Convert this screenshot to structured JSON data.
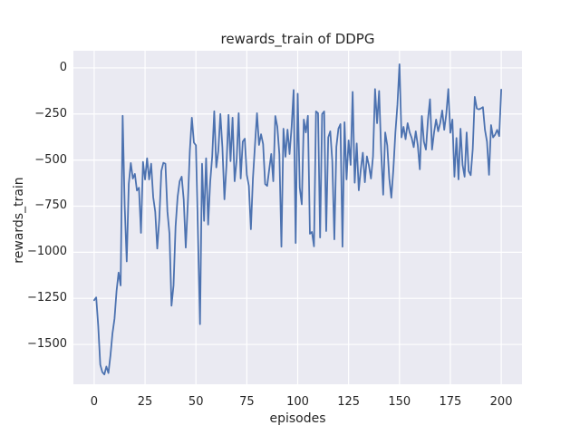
{
  "chart_data": {
    "type": "line",
    "title": "rewards_train of DDPG",
    "xlabel": "episodes",
    "ylabel": "rewards_train",
    "legend": null,
    "grid": true,
    "style": "seaborn-darkgrid",
    "axes_bg_color": "#eaeaf2",
    "grid_color": "#ffffff",
    "line_color": "#4c72b0",
    "text_color": "#262626",
    "xlim": [
      -10.2,
      210.2
    ],
    "ylim": [
      -1716,
      93
    ],
    "xticks": [
      {
        "label": "0",
        "value": 0
      },
      {
        "label": "25",
        "value": 25
      },
      {
        "label": "50",
        "value": 50
      },
      {
        "label": "75",
        "value": 75
      },
      {
        "label": "100",
        "value": 100
      },
      {
        "label": "125",
        "value": 125
      },
      {
        "label": "150",
        "value": 150
      },
      {
        "label": "175",
        "value": 175
      },
      {
        "label": "200",
        "value": 200
      }
    ],
    "yticks": [
      {
        "label": "0",
        "value": 0
      },
      {
        "label": "−250",
        "value": -250
      },
      {
        "label": "−500",
        "value": -500
      },
      {
        "label": "−750",
        "value": -750
      },
      {
        "label": "−1000",
        "value": -1000
      },
      {
        "label": "−1250",
        "value": -1250
      },
      {
        "label": "−1500",
        "value": -1500
      }
    ],
    "x_start": 0,
    "x_step": 1,
    "values": [
      -1260,
      -1245,
      -1400,
      -1610,
      -1650,
      -1663,
      -1620,
      -1655,
      -1560,
      -1440,
      -1360,
      -1210,
      -1110,
      -1180,
      -260,
      -750,
      -1050,
      -630,
      -516,
      -600,
      -575,
      -665,
      -650,
      -895,
      -510,
      -605,
      -490,
      -605,
      -520,
      -700,
      -780,
      -980,
      -820,
      -560,
      -515,
      -520,
      -780,
      -900,
      -1290,
      -1180,
      -860,
      -700,
      -615,
      -590,
      -715,
      -975,
      -740,
      -450,
      -270,
      -405,
      -420,
      -900,
      -1390,
      -520,
      -830,
      -490,
      -850,
      -620,
      -480,
      -235,
      -540,
      -450,
      -250,
      -430,
      -713,
      -530,
      -255,
      -506,
      -270,
      -615,
      -500,
      -246,
      -600,
      -400,
      -384,
      -580,
      -640,
      -875,
      -600,
      -420,
      -246,
      -418,
      -360,
      -413,
      -630,
      -640,
      -551,
      -467,
      -615,
      -261,
      -320,
      -470,
      -970,
      -330,
      -482,
      -335,
      -467,
      -320,
      -120,
      -950,
      -140,
      -650,
      -740,
      -280,
      -350,
      -260,
      -900,
      -890,
      -968,
      -236,
      -246,
      -920,
      -250,
      -236,
      -885,
      -377,
      -344,
      -507,
      -930,
      -428,
      -330,
      -305,
      -970,
      -295,
      -605,
      -393,
      -526,
      -130,
      -623,
      -410,
      -664,
      -550,
      -460,
      -620,
      -480,
      -530,
      -600,
      -480,
      -115,
      -300,
      -125,
      -450,
      -688,
      -350,
      -420,
      -600,
      -704,
      -550,
      -350,
      -200,
      20,
      -377,
      -320,
      -387,
      -300,
      -350,
      -380,
      -430,
      -344,
      -420,
      -550,
      -261,
      -400,
      -443,
      -280,
      -170,
      -443,
      -350,
      -280,
      -344,
      -300,
      -231,
      -336,
      -250,
      -115,
      -352,
      -280,
      -590,
      -380,
      -605,
      -330,
      -526,
      -590,
      -350,
      -560,
      -582,
      -440,
      -157,
      -220,
      -225,
      -220,
      -213,
      -336,
      -400,
      -580,
      -310,
      -377,
      -362,
      -336,
      -370,
      -118
    ]
  }
}
